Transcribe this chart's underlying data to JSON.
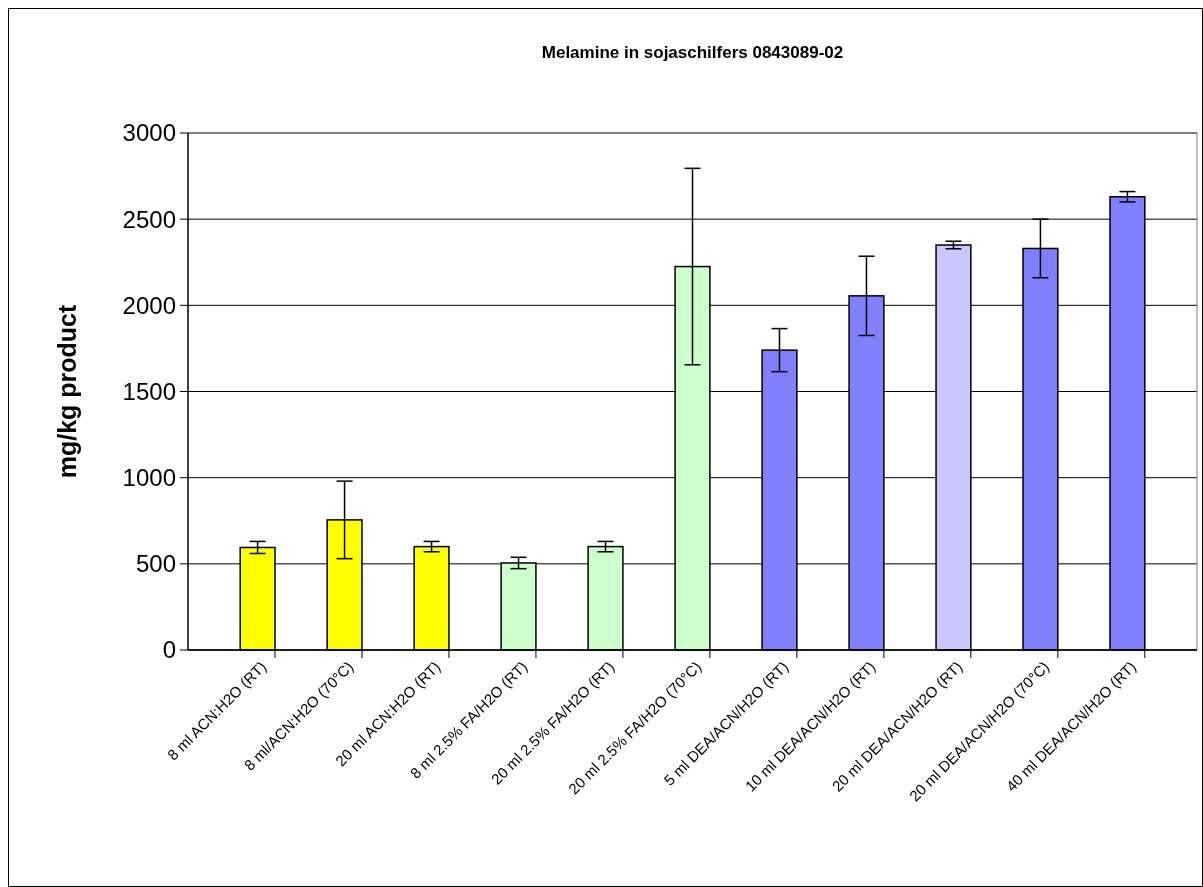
{
  "chart_data": {
    "type": "bar",
    "title": "Melamine in sojaschilfers 0843089-02",
    "ylabel": "mg/kg product",
    "categories": [
      "8 ml ACN:H2O (RT)",
      "8 ml/ACN:H2O (70°C)",
      "20 ml ACN:H2O (RT)",
      "8 ml 2.5% FA/H2O (RT)",
      "20 ml 2.5% FA/H2O (RT)",
      "20 ml 2.5% FA/H2O (70°C)",
      "5 ml DEA/ACN/H2O (RT)",
      "10 ml DEA/ACN/H2O (RT)",
      "20 ml DEA/ACN/H2O (RT)",
      "20 ml DEA/ACN/H2O (70°C)",
      "40 ml DEA/ACN/H2O (RT)"
    ],
    "values": [
      595,
      755,
      600,
      505,
      600,
      2225,
      1740,
      2055,
      2350,
      2330,
      2630
    ],
    "errors": [
      35,
      225,
      30,
      33,
      30,
      570,
      125,
      230,
      22,
      170,
      30
    ],
    "colors": [
      "#ffff00",
      "#ffff00",
      "#ffff00",
      "#ccffcc",
      "#ccffcc",
      "#ccffcc",
      "#8080ff",
      "#8080ff",
      "#c8c8ff",
      "#8080ff",
      "#8080ff"
    ],
    "ylim": [
      0,
      3000
    ],
    "yticks": [
      0,
      500,
      1000,
      1500,
      2000,
      2500,
      3000
    ],
    "grid": "y"
  }
}
